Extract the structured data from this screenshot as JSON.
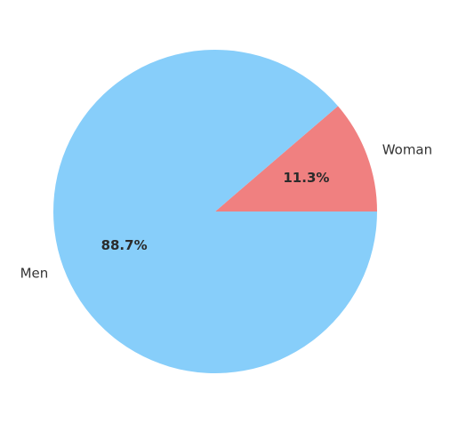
{
  "chart_data": {
    "type": "pie",
    "title": "",
    "categories": [
      "Woman",
      "Men"
    ],
    "values": [
      11.3,
      88.7
    ],
    "percent_labels": [
      "11.3%",
      "88.7%"
    ],
    "colors": [
      "#f08080",
      "#87cefa"
    ],
    "start_angle_deg": 0,
    "direction": "counterclockwise",
    "legend": "none"
  }
}
